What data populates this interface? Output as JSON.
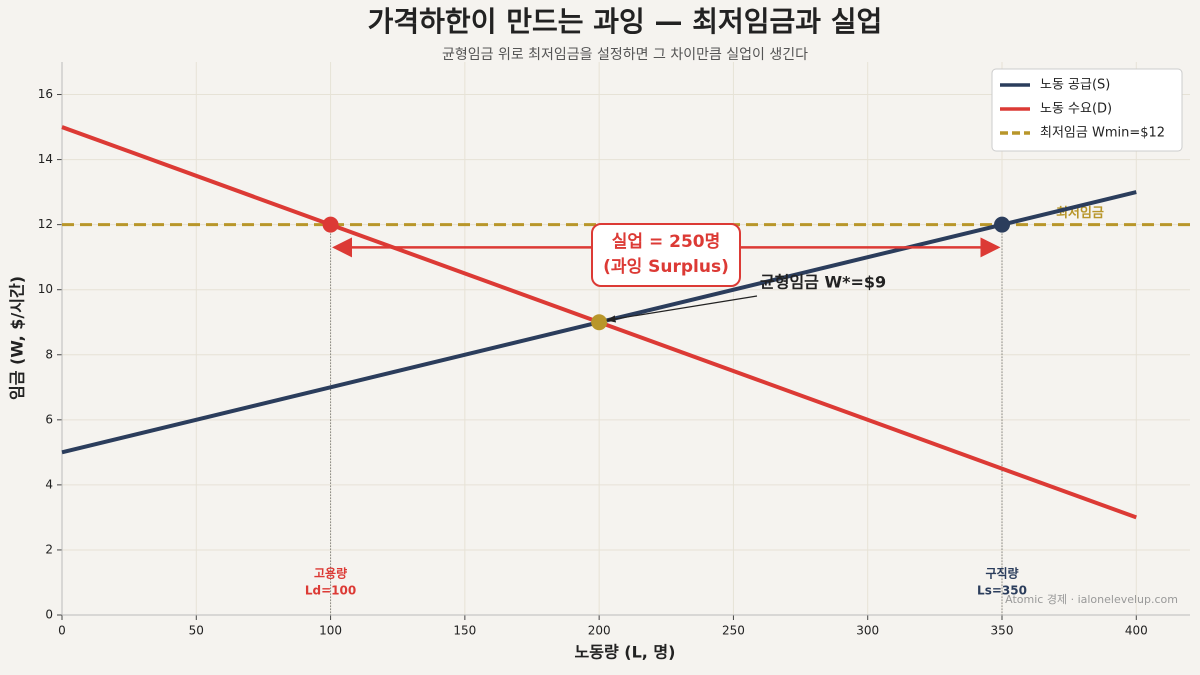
{
  "chart_data": {
    "type": "line",
    "title": "가격하한이 만드는 과잉 — 최저임금과 실업",
    "subtitle": "균형임금 위로 최저임금을 설정하면 그 차이만큼 실업이 생긴다",
    "xlabel": "노동량 (L, 명)",
    "ylabel": "임금 (W, $/시간)",
    "x": [
      0,
      400
    ],
    "series": [
      {
        "name": "노동 공급(S)",
        "color": "#2b3d5c",
        "values": [
          5,
          13
        ]
      },
      {
        "name": "노동 수요(D)",
        "color": "#dc3a35",
        "values": [
          15,
          3
        ]
      }
    ],
    "hlines": [
      {
        "name": "최저임금 Wmin=$12",
        "value": 12,
        "color": "#b8962a",
        "label": "최저임금"
      }
    ],
    "points": [
      {
        "x": 100,
        "y": 12,
        "color": "#dc3a35"
      },
      {
        "x": 350,
        "y": 12,
        "color": "#2b3d5c"
      },
      {
        "x": 200,
        "y": 9,
        "color": "#b8962a"
      }
    ],
    "surplus_arrow": {
      "y": 11.3
    },
    "annotations": {
      "surplus": [
        "실업 = 250명",
        "(과잉 Surplus)"
      ],
      "equilibrium": "균형임금 W*=$9",
      "employment": [
        "고용량",
        "Ld=100"
      ],
      "jobseekers": [
        "구직량",
        "Ls=350"
      ],
      "credit": "Atomic 경제 · ialonelevelup.com"
    },
    "xlim": [
      0,
      420
    ],
    "ylim": [
      0,
      17
    ],
    "xticks": [
      0,
      50,
      100,
      150,
      200,
      250,
      300,
      350,
      400
    ],
    "yticks": [
      0,
      2,
      4,
      6,
      8,
      10,
      12,
      14,
      16
    ],
    "grid": true,
    "legend": "upper right"
  }
}
